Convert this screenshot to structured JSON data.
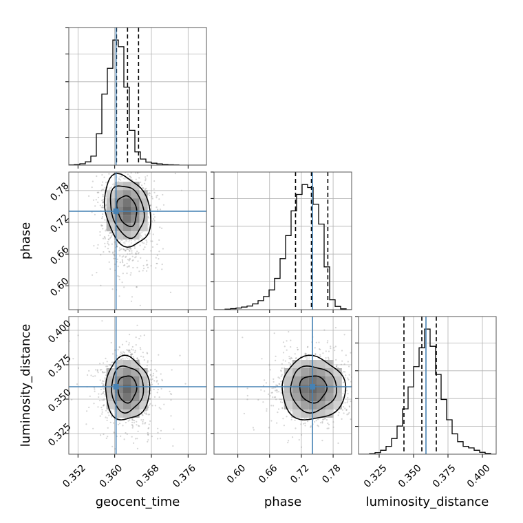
{
  "chart_data": {
    "type": "corner",
    "parameters": [
      "geocent_time",
      "phase",
      "luminosity_distance"
    ],
    "axis_labels": {
      "x": [
        "geocent_time",
        "phase",
        "luminosity_distance"
      ],
      "y": [
        "",
        "phase",
        "luminosity_distance"
      ]
    },
    "ranges": {
      "geocent_time": [
        0.35,
        0.38
      ],
      "phase": [
        0.555,
        0.815
      ],
      "luminosity_distance": [
        0.31,
        0.41
      ]
    },
    "ticks": {
      "geocent_time": {
        "values": [
          0.352,
          0.36,
          0.368,
          0.376
        ],
        "labels": [
          "0.352",
          "0.360",
          "0.368",
          "0.376"
        ]
      },
      "phase": {
        "values": [
          0.6,
          0.66,
          0.72,
          0.78
        ],
        "labels": [
          "0.60",
          "0.66",
          "0.72",
          "0.78"
        ]
      },
      "luminosity_distance": {
        "values": [
          0.325,
          0.35,
          0.375,
          0.4
        ],
        "labels": [
          "0.325",
          "0.350",
          "0.375",
          "0.400"
        ]
      }
    },
    "truths": {
      "geocent_time": 0.3603,
      "phase": 0.741,
      "luminosity_distance": 0.359
    },
    "quantiles": {
      "geocent_time": [
        0.3604,
        0.3628,
        0.3652
      ],
      "phase": [
        0.709,
        0.739,
        0.77
      ],
      "luminosity_distance": [
        0.343,
        0.356,
        0.3665
      ]
    },
    "histograms": {
      "geocent_time": {
        "range": [
          0.35,
          0.38
        ],
        "counts": [
          2,
          4,
          10,
          24,
          65,
          225,
          510,
          695,
          898,
          850,
          560,
          250,
          95,
          44,
          22,
          14,
          9,
          5,
          3,
          2,
          0,
          0,
          0,
          0,
          0
        ]
      },
      "phase": {
        "range": [
          0.555,
          0.815
        ],
        "counts": [
          0,
          0,
          3,
          6,
          10,
          16,
          22,
          35,
          55,
          80,
          120,
          190,
          310,
          450,
          600,
          700,
          760,
          742,
          640,
          520,
          260,
          60,
          20,
          5,
          0
        ]
      },
      "luminosity_distance": {
        "range": [
          0.31,
          0.41
        ],
        "counts": [
          0,
          0,
          3,
          10,
          25,
          50,
          100,
          180,
          290,
          430,
          560,
          680,
          800,
          690,
          510,
          350,
          220,
          130,
          80,
          50,
          40,
          25,
          12,
          5,
          0
        ]
      }
    },
    "posterior_2d": {
      "geocent_time": {
        "mean": 0.3627,
        "sd": 0.0024
      },
      "phase": {
        "mean": 0.742,
        "sd": 0.03
      },
      "luminosity_distance": {
        "mean": 0.3575,
        "sd": 0.0115
      }
    },
    "grid": true
  }
}
